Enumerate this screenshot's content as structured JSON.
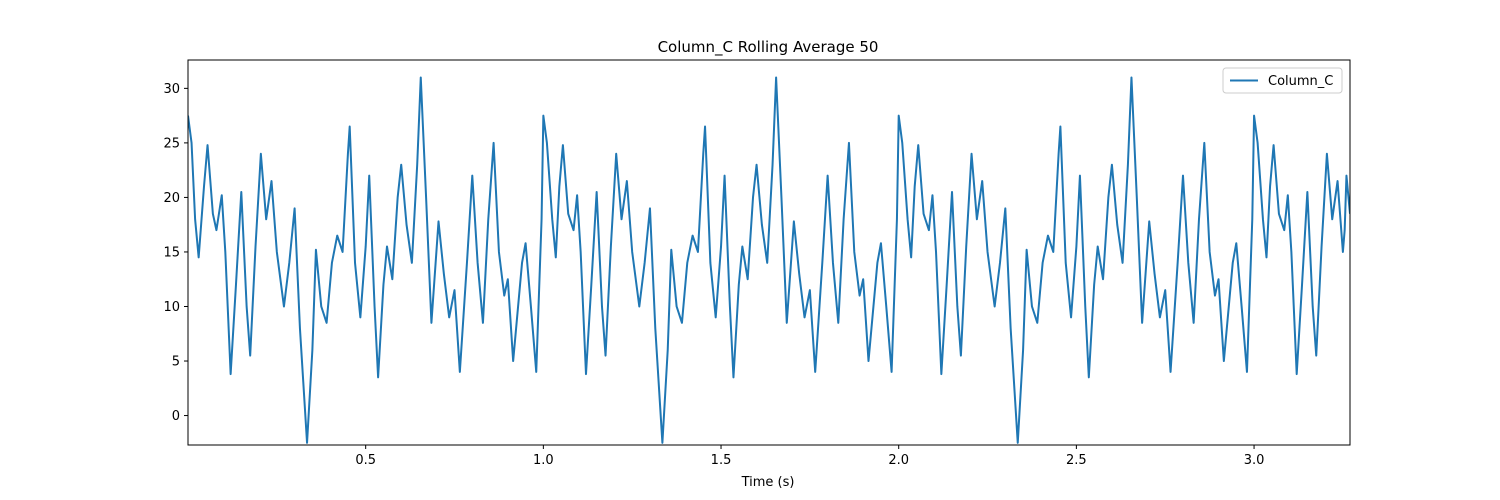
{
  "chart_data": {
    "type": "line",
    "title": "Column_C Rolling Average 50",
    "xlabel": "Time (s)",
    "ylabel": "",
    "xlim": [
      0.0,
      3.27
    ],
    "ylim": [
      -2.7,
      32.6
    ],
    "xticks": [
      "0.5",
      "1.0",
      "1.5",
      "2.0",
      "2.5",
      "3.0"
    ],
    "yticks": [
      "0",
      "5",
      "10",
      "15",
      "20",
      "25",
      "30"
    ],
    "grid": false,
    "legend_position": "top-right",
    "series": [
      {
        "name": "Column_C",
        "color": "#1f77b4",
        "points": [
          [
            0.0,
            27.5
          ],
          [
            0.01,
            25.0
          ],
          [
            0.02,
            18.0
          ],
          [
            0.03,
            14.5
          ],
          [
            0.045,
            21.0
          ],
          [
            0.055,
            24.8
          ],
          [
            0.07,
            18.5
          ],
          [
            0.08,
            17.0
          ],
          [
            0.095,
            20.2
          ],
          [
            0.105,
            15.0
          ],
          [
            0.12,
            3.8
          ],
          [
            0.135,
            12.0
          ],
          [
            0.15,
            20.5
          ],
          [
            0.165,
            10.0
          ],
          [
            0.175,
            5.5
          ],
          [
            0.19,
            15.5
          ],
          [
            0.205,
            24.0
          ],
          [
            0.22,
            18.0
          ],
          [
            0.235,
            21.5
          ],
          [
            0.25,
            15.0
          ],
          [
            0.27,
            10.0
          ],
          [
            0.285,
            14.0
          ],
          [
            0.3,
            19.0
          ],
          [
            0.315,
            8.0
          ],
          [
            0.335,
            -2.5
          ],
          [
            0.35,
            6.0
          ],
          [
            0.36,
            15.2
          ],
          [
            0.375,
            10.0
          ],
          [
            0.39,
            8.5
          ],
          [
            0.405,
            14.0
          ],
          [
            0.42,
            16.5
          ],
          [
            0.435,
            15.0
          ],
          [
            0.45,
            24.0
          ],
          [
            0.455,
            26.5
          ],
          [
            0.47,
            14.0
          ],
          [
            0.485,
            9.0
          ],
          [
            0.5,
            15.5
          ],
          [
            0.51,
            22.0
          ],
          [
            0.525,
            10.0
          ],
          [
            0.535,
            3.5
          ],
          [
            0.55,
            12.0
          ],
          [
            0.56,
            15.5
          ],
          [
            0.575,
            12.5
          ],
          [
            0.59,
            20.0
          ],
          [
            0.6,
            23.0
          ],
          [
            0.615,
            17.5
          ],
          [
            0.63,
            14.0
          ],
          [
            0.645,
            23.0
          ],
          [
            0.655,
            31.0
          ],
          [
            0.67,
            20.0
          ],
          [
            0.685,
            8.5
          ],
          [
            0.705,
            17.8
          ],
          [
            0.72,
            13.0
          ],
          [
            0.735,
            9.0
          ],
          [
            0.75,
            11.5
          ],
          [
            0.765,
            4.0
          ],
          [
            0.785,
            14.0
          ],
          [
            0.8,
            22.0
          ],
          [
            0.815,
            14.0
          ],
          [
            0.83,
            8.5
          ],
          [
            0.845,
            18.0
          ],
          [
            0.86,
            25.0
          ],
          [
            0.875,
            15.0
          ],
          [
            0.89,
            11.0
          ],
          [
            0.9,
            12.5
          ],
          [
            0.915,
            5.0
          ],
          [
            0.94,
            14.0
          ],
          [
            0.95,
            15.8
          ],
          [
            0.965,
            10.0
          ],
          [
            0.98,
            4.0
          ],
          [
            0.995,
            18.0
          ],
          [
            1.0,
            27.5
          ],
          [
            1.01,
            25.0
          ],
          [
            1.025,
            18.0
          ],
          [
            1.035,
            14.5
          ],
          [
            1.045,
            21.0
          ],
          [
            1.055,
            24.8
          ],
          [
            1.07,
            18.5
          ],
          [
            1.085,
            17.0
          ],
          [
            1.095,
            20.2
          ],
          [
            1.105,
            15.0
          ],
          [
            1.12,
            3.8
          ],
          [
            1.135,
            12.0
          ],
          [
            1.15,
            20.5
          ],
          [
            1.165,
            10.0
          ],
          [
            1.175,
            5.5
          ],
          [
            1.19,
            15.5
          ],
          [
            1.205,
            24.0
          ],
          [
            1.22,
            18.0
          ],
          [
            1.235,
            21.5
          ],
          [
            1.25,
            15.0
          ],
          [
            1.27,
            10.0
          ],
          [
            1.285,
            14.0
          ],
          [
            1.3,
            19.0
          ],
          [
            1.315,
            8.0
          ],
          [
            1.335,
            -2.5
          ],
          [
            1.35,
            6.0
          ],
          [
            1.36,
            15.2
          ],
          [
            1.375,
            10.0
          ],
          [
            1.39,
            8.5
          ],
          [
            1.405,
            14.0
          ],
          [
            1.42,
            16.5
          ],
          [
            1.435,
            15.0
          ],
          [
            1.45,
            24.0
          ],
          [
            1.455,
            26.5
          ],
          [
            1.47,
            14.0
          ],
          [
            1.485,
            9.0
          ],
          [
            1.5,
            15.5
          ],
          [
            1.51,
            22.0
          ],
          [
            1.525,
            10.0
          ],
          [
            1.535,
            3.5
          ],
          [
            1.55,
            12.0
          ],
          [
            1.56,
            15.5
          ],
          [
            1.575,
            12.5
          ],
          [
            1.59,
            20.0
          ],
          [
            1.6,
            23.0
          ],
          [
            1.615,
            17.5
          ],
          [
            1.63,
            14.0
          ],
          [
            1.645,
            23.0
          ],
          [
            1.655,
            31.0
          ],
          [
            1.67,
            20.0
          ],
          [
            1.685,
            8.5
          ],
          [
            1.705,
            17.8
          ],
          [
            1.72,
            13.0
          ],
          [
            1.735,
            9.0
          ],
          [
            1.75,
            11.5
          ],
          [
            1.765,
            4.0
          ],
          [
            1.785,
            14.0
          ],
          [
            1.8,
            22.0
          ],
          [
            1.815,
            14.0
          ],
          [
            1.83,
            8.5
          ],
          [
            1.845,
            18.0
          ],
          [
            1.86,
            25.0
          ],
          [
            1.875,
            15.0
          ],
          [
            1.89,
            11.0
          ],
          [
            1.9,
            12.5
          ],
          [
            1.915,
            5.0
          ],
          [
            1.94,
            14.0
          ],
          [
            1.95,
            15.8
          ],
          [
            1.965,
            10.0
          ],
          [
            1.98,
            4.0
          ],
          [
            1.995,
            18.0
          ],
          [
            2.0,
            27.5
          ],
          [
            2.01,
            25.0
          ],
          [
            2.025,
            18.0
          ],
          [
            2.035,
            14.5
          ],
          [
            2.045,
            21.0
          ],
          [
            2.055,
            24.8
          ],
          [
            2.07,
            18.5
          ],
          [
            2.085,
            17.0
          ],
          [
            2.095,
            20.2
          ],
          [
            2.105,
            15.0
          ],
          [
            2.12,
            3.8
          ],
          [
            2.135,
            12.0
          ],
          [
            2.15,
            20.5
          ],
          [
            2.165,
            10.0
          ],
          [
            2.175,
            5.5
          ],
          [
            2.19,
            15.5
          ],
          [
            2.205,
            24.0
          ],
          [
            2.22,
            18.0
          ],
          [
            2.235,
            21.5
          ],
          [
            2.25,
            15.0
          ],
          [
            2.27,
            10.0
          ],
          [
            2.285,
            14.0
          ],
          [
            2.3,
            19.0
          ],
          [
            2.315,
            8.0
          ],
          [
            2.335,
            -2.5
          ],
          [
            2.35,
            6.0
          ],
          [
            2.36,
            15.2
          ],
          [
            2.375,
            10.0
          ],
          [
            2.39,
            8.5
          ],
          [
            2.405,
            14.0
          ],
          [
            2.42,
            16.5
          ],
          [
            2.435,
            15.0
          ],
          [
            2.45,
            24.0
          ],
          [
            2.455,
            26.5
          ],
          [
            2.47,
            14.0
          ],
          [
            2.485,
            9.0
          ],
          [
            2.5,
            15.5
          ],
          [
            2.51,
            22.0
          ],
          [
            2.525,
            10.0
          ],
          [
            2.535,
            3.5
          ],
          [
            2.55,
            12.0
          ],
          [
            2.56,
            15.5
          ],
          [
            2.575,
            12.5
          ],
          [
            2.59,
            20.0
          ],
          [
            2.6,
            23.0
          ],
          [
            2.615,
            17.5
          ],
          [
            2.63,
            14.0
          ],
          [
            2.645,
            23.0
          ],
          [
            2.655,
            31.0
          ],
          [
            2.67,
            20.0
          ],
          [
            2.685,
            8.5
          ],
          [
            2.705,
            17.8
          ],
          [
            2.72,
            13.0
          ],
          [
            2.735,
            9.0
          ],
          [
            2.75,
            11.5
          ],
          [
            2.765,
            4.0
          ],
          [
            2.785,
            14.0
          ],
          [
            2.8,
            22.0
          ],
          [
            2.815,
            14.0
          ],
          [
            2.83,
            8.5
          ],
          [
            2.845,
            18.0
          ],
          [
            2.86,
            25.0
          ],
          [
            2.875,
            15.0
          ],
          [
            2.89,
            11.0
          ],
          [
            2.9,
            12.5
          ],
          [
            2.915,
            5.0
          ],
          [
            2.94,
            14.0
          ],
          [
            2.95,
            15.8
          ],
          [
            2.965,
            10.0
          ],
          [
            2.98,
            4.0
          ],
          [
            2.995,
            18.0
          ],
          [
            3.0,
            27.5
          ],
          [
            3.01,
            25.0
          ],
          [
            3.025,
            18.0
          ],
          [
            3.035,
            14.5
          ],
          [
            3.045,
            21.0
          ],
          [
            3.055,
            24.8
          ],
          [
            3.07,
            18.5
          ],
          [
            3.085,
            17.0
          ],
          [
            3.095,
            20.2
          ],
          [
            3.105,
            15.0
          ],
          [
            3.12,
            3.8
          ],
          [
            3.135,
            12.0
          ],
          [
            3.15,
            20.5
          ],
          [
            3.165,
            10.0
          ],
          [
            3.175,
            5.5
          ],
          [
            3.19,
            15.5
          ],
          [
            3.205,
            24.0
          ],
          [
            3.22,
            18.0
          ],
          [
            3.235,
            21.5
          ],
          [
            3.25,
            15.0
          ],
          [
            3.255,
            17.0
          ],
          [
            3.26,
            22.0
          ],
          [
            3.27,
            18.5
          ]
        ]
      }
    ]
  }
}
